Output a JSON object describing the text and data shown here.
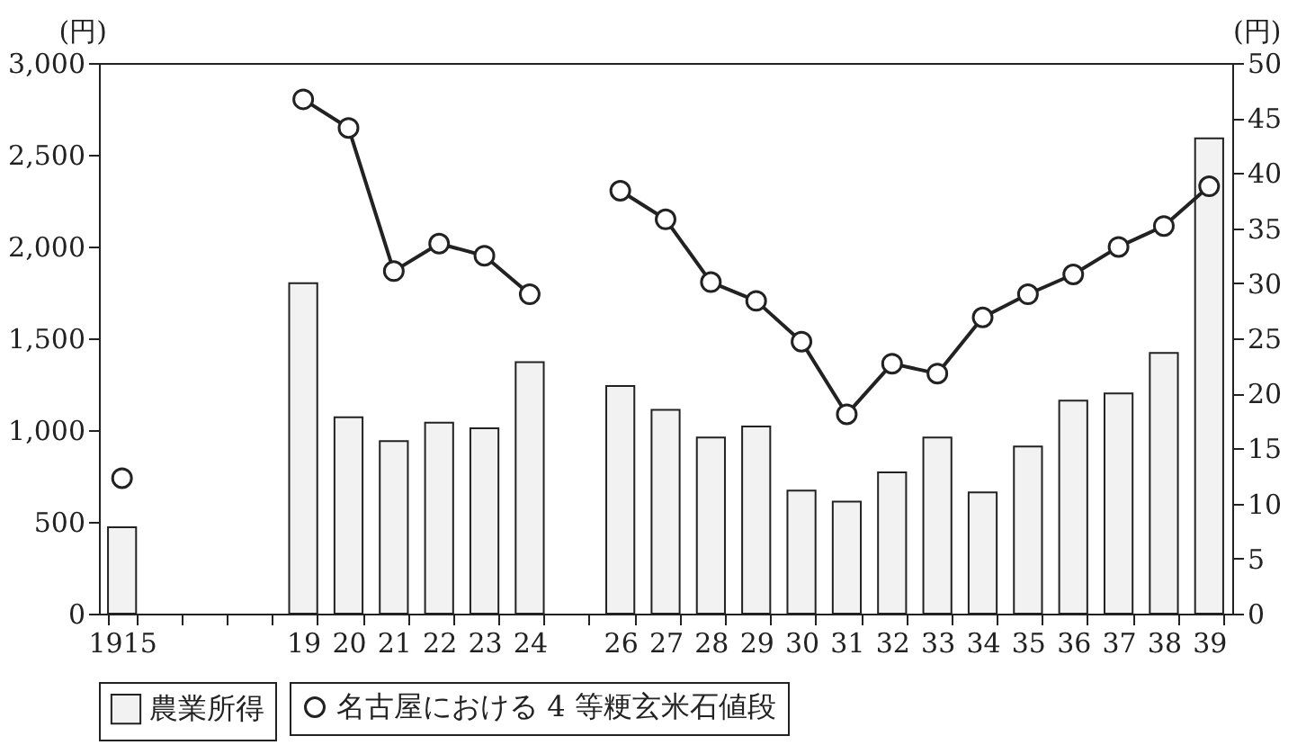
{
  "chart_data": {
    "type": "bar",
    "categories": [
      "1915",
      null,
      null,
      null,
      "19",
      "20",
      "21",
      "22",
      "23",
      "24",
      null,
      "26",
      "27",
      "28",
      "29",
      "30",
      "31",
      "32",
      "33",
      "34",
      "35",
      "36",
      "37",
      "38",
      "39"
    ],
    "series": [
      {
        "name": "農業所得",
        "color": "#f2f2f2",
        "values": [
          470,
          null,
          null,
          null,
          1800,
          1070,
          940,
          1040,
          1010,
          1370,
          null,
          1240,
          1110,
          960,
          1020,
          670,
          610,
          770,
          960,
          660,
          910,
          1160,
          1200,
          1420,
          2590
        ]
      },
      {
        "type": "line",
        "axis": "y2",
        "name": "名古屋における 4 等粳玄米石値段",
        "color": "#222222",
        "values": [
          12.3,
          null,
          null,
          null,
          46.7,
          44.1,
          31.1,
          33.6,
          32.5,
          29.0,
          null,
          38.4,
          35.8,
          30.1,
          28.4,
          24.7,
          18.1,
          22.7,
          21.8,
          26.9,
          29.0,
          30.8,
          33.3,
          35.2,
          38.8
        ]
      }
    ],
    "ylabel": "(円)",
    "y2label": "(円)",
    "ylim": [
      0,
      3000
    ],
    "yticks": [
      0,
      {
        "value": 500,
        "label": "500"
      },
      {
        "value": 1000,
        "label": "1,000"
      },
      {
        "value": 1500,
        "label": "1,500"
      },
      {
        "value": 2000,
        "label": "2,000"
      },
      {
        "value": 2500,
        "label": "2,500"
      },
      {
        "value": 3000,
        "label": "3,000"
      }
    ],
    "y2lim": [
      0,
      50
    ],
    "y2ticks": [
      0,
      5,
      10,
      15,
      20,
      25,
      30,
      35,
      40,
      45,
      50
    ],
    "legend": "bottom",
    "marker": "circle"
  }
}
